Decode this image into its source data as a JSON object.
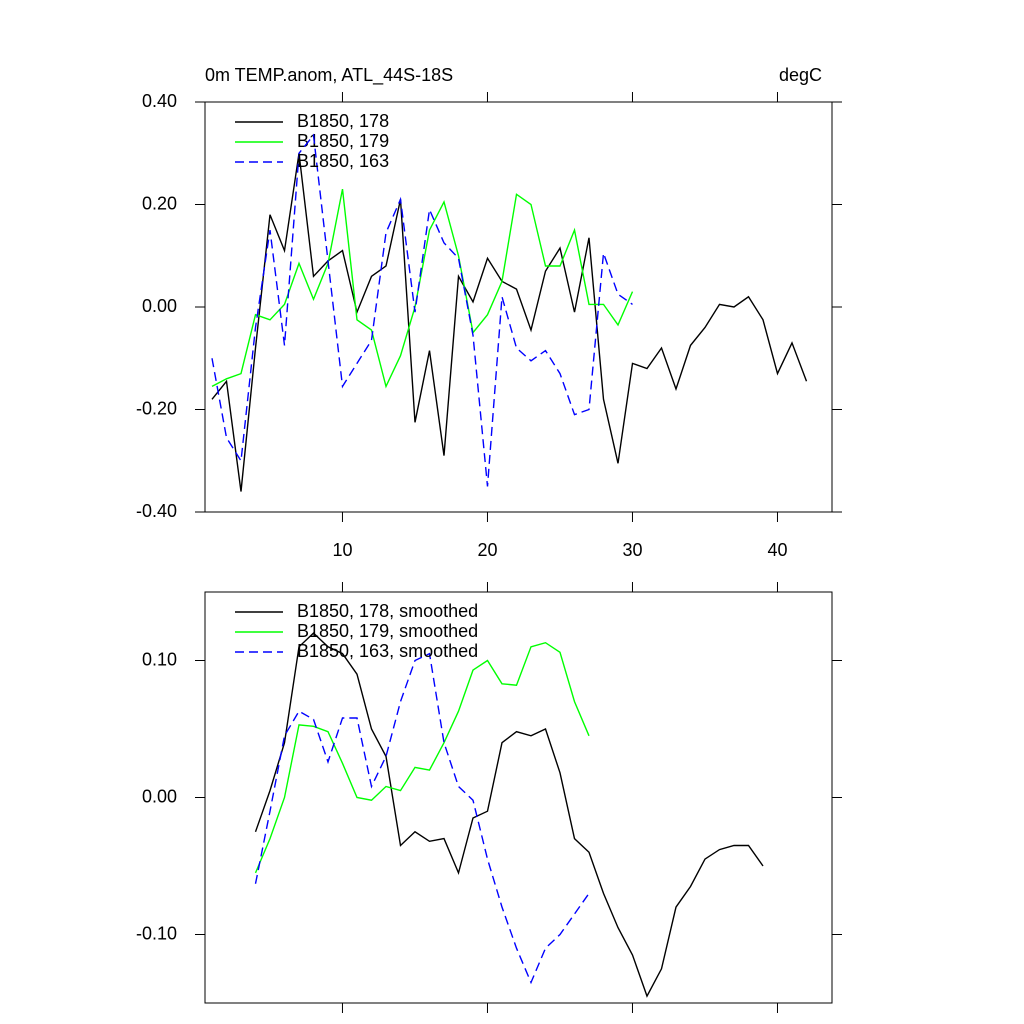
{
  "chart_data": [
    {
      "type": "line",
      "title": "0m TEMP.anom, ATL_44S-18S",
      "units": "degC",
      "xlim": [
        0.52,
        43.76
      ],
      "xticks": [
        10,
        20,
        30,
        40
      ],
      "xtick_labels": true,
      "ylim": [
        -0.4,
        0.4
      ],
      "yticks": [
        {
          "value": -0.4,
          "label": "-0.40"
        },
        {
          "value": -0.2,
          "label": "-0.20"
        },
        {
          "value": 0,
          "label": "0.00"
        },
        {
          "value": 0.2,
          "label": "0.20"
        },
        {
          "value": 0.4,
          "label": "0.40"
        }
      ],
      "legend": "top-left",
      "series": [
        {
          "name": "B1850, 178",
          "color": "#000000",
          "dashed": false,
          "x": [
            1,
            2,
            3,
            4,
            5,
            6,
            7,
            8,
            9,
            10,
            11,
            12,
            13,
            14,
            15,
            16,
            17,
            18,
            19,
            20,
            21,
            22,
            23,
            24,
            25,
            26,
            27,
            28,
            29,
            30,
            31,
            32,
            33,
            34,
            35,
            36,
            37,
            38,
            39,
            40,
            41,
            42
          ],
          "values": [
            -0.18,
            -0.145,
            -0.36,
            -0.08,
            0.18,
            0.11,
            0.3,
            0.06,
            0.09,
            0.11,
            -0.01,
            0.06,
            0.08,
            0.21,
            -0.225,
            -0.085,
            -0.29,
            0.06,
            0.01,
            0.095,
            0.05,
            0.035,
            -0.045,
            0.07,
            0.115,
            -0.01,
            0.135,
            -0.18,
            -0.305,
            -0.11,
            -0.12,
            -0.08,
            -0.16,
            -0.075,
            -0.04,
            0.005,
            0.0,
            0.02,
            -0.025,
            -0.13,
            -0.07,
            -0.145
          ]
        },
        {
          "name": "B1850, 179",
          "color": "#00ff00",
          "dashed": false,
          "x": [
            1,
            2,
            3,
            4,
            5,
            6,
            7,
            8,
            9,
            10,
            11,
            12,
            13,
            14,
            15,
            16,
            17,
            18,
            19,
            20,
            21,
            22,
            23,
            24,
            25,
            26,
            27,
            28,
            29,
            30
          ],
          "values": [
            -0.155,
            -0.14,
            -0.13,
            -0.015,
            -0.025,
            0.005,
            0.085,
            0.015,
            0.085,
            0.23,
            -0.025,
            -0.045,
            -0.155,
            -0.095,
            0.0,
            0.15,
            0.205,
            0.1,
            -0.05,
            -0.015,
            0.05,
            0.22,
            0.2,
            0.08,
            0.08,
            0.15,
            0.005,
            0.005,
            -0.035,
            0.03
          ]
        },
        {
          "name": "B1850, 163",
          "color": "#0000ff",
          "dashed": true,
          "x": [
            1,
            2,
            3,
            4,
            5,
            6,
            7,
            8,
            9,
            10,
            11,
            12,
            13,
            14,
            15,
            16,
            17,
            18,
            19,
            20,
            21,
            22,
            23,
            24,
            25,
            26,
            27,
            28,
            29,
            30
          ],
          "values": [
            -0.1,
            -0.255,
            -0.3,
            -0.04,
            0.15,
            -0.075,
            0.3,
            0.335,
            0.09,
            -0.155,
            -0.11,
            -0.065,
            0.145,
            0.21,
            -0.01,
            0.19,
            0.125,
            0.095,
            -0.055,
            -0.35,
            0.02,
            -0.08,
            -0.105,
            -0.085,
            -0.13,
            -0.21,
            -0.2,
            0.105,
            0.025,
            0.005
          ]
        }
      ]
    },
    {
      "type": "line",
      "xlim": [
        0.52,
        43.76
      ],
      "xticks": [
        10,
        20,
        30,
        40
      ],
      "xtick_labels": false,
      "ylim": [
        -0.15,
        0.15
      ],
      "yticks": [
        {
          "value": -0.1,
          "label": "-0.10"
        },
        {
          "value": 0,
          "label": "0.00"
        },
        {
          "value": 0.1,
          "label": "0.10"
        }
      ],
      "legend": "top-left",
      "series": [
        {
          "name": "B1850, 178, smoothed",
          "color": "#000000",
          "dashed": false,
          "x": [
            4,
            5,
            6,
            7,
            8,
            9,
            10,
            11,
            12,
            13,
            14,
            15,
            16,
            17,
            18,
            19,
            20,
            21,
            22,
            23,
            24,
            25,
            26,
            27,
            28,
            29,
            30,
            31,
            32,
            33,
            34,
            35,
            36,
            37,
            38,
            39
          ],
          "values": [
            -0.025,
            0.005,
            0.04,
            0.11,
            0.12,
            0.11,
            0.105,
            0.09,
            0.05,
            0.03,
            -0.035,
            -0.025,
            -0.032,
            -0.03,
            -0.055,
            -0.015,
            -0.01,
            0.04,
            0.048,
            0.045,
            0.05,
            0.018,
            -0.03,
            -0.04,
            -0.07,
            -0.095,
            -0.115,
            -0.145,
            -0.125,
            -0.08,
            -0.065,
            -0.045,
            -0.038,
            -0.035,
            -0.035,
            -0.05
          ]
        },
        {
          "name": "B1850, 179, smoothed",
          "color": "#00ff00",
          "dashed": false,
          "x": [
            4,
            5,
            6,
            7,
            8,
            9,
            10,
            11,
            12,
            13,
            14,
            15,
            16,
            17,
            18,
            19,
            20,
            21,
            22,
            23,
            24,
            25,
            26,
            27
          ],
          "values": [
            -0.055,
            -0.03,
            0.0,
            0.053,
            0.052,
            0.048,
            0.025,
            0.0,
            -0.002,
            0.008,
            0.005,
            0.022,
            0.02,
            0.04,
            0.063,
            0.093,
            0.1,
            0.083,
            0.082,
            0.11,
            0.113,
            0.106,
            0.07,
            0.045
          ]
        },
        {
          "name": "B1850, 163, smoothed",
          "color": "#0000ff",
          "dashed": true,
          "x": [
            4,
            5,
            6,
            7,
            8,
            9,
            10,
            11,
            12,
            13,
            14,
            15,
            16,
            17,
            18,
            19,
            20,
            21,
            22,
            23,
            24,
            25,
            26,
            27
          ],
          "values": [
            -0.063,
            -0.01,
            0.045,
            0.063,
            0.057,
            0.026,
            0.058,
            0.058,
            0.008,
            0.03,
            0.07,
            0.1,
            0.105,
            0.04,
            0.008,
            -0.002,
            -0.045,
            -0.08,
            -0.11,
            -0.135,
            -0.11,
            -0.1,
            -0.085,
            -0.07
          ]
        }
      ]
    }
  ]
}
